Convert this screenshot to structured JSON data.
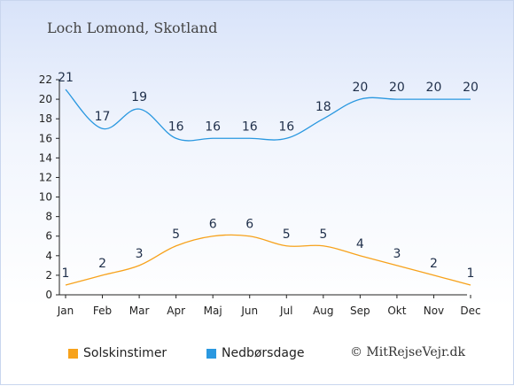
{
  "title": "Loch Lomond, Skotland",
  "credit": "© MitRejseVejr.dk",
  "legend": [
    {
      "label": "Solskinstimer",
      "color": "#f7a21b"
    },
    {
      "label": "Nedbørsdage",
      "color": "#2a98e0"
    }
  ],
  "chart_data": {
    "type": "line",
    "categories": [
      "Jan",
      "Feb",
      "Mar",
      "Apr",
      "Maj",
      "Jun",
      "Jul",
      "Aug",
      "Sep",
      "Okt",
      "Nov",
      "Dec"
    ],
    "series": [
      {
        "name": "Solskinstimer",
        "color": "#f7a21b",
        "values": [
          1,
          2,
          3,
          5,
          6,
          6,
          5,
          5,
          4,
          3,
          2,
          1
        ]
      },
      {
        "name": "Nedbørsdage",
        "color": "#2a98e0",
        "values": [
          21,
          17,
          19,
          16,
          16,
          16,
          16,
          18,
          20,
          20,
          20,
          20
        ]
      }
    ],
    "yticks": [
      0,
      2,
      4,
      6,
      8,
      10,
      12,
      14,
      16,
      18,
      20,
      22
    ],
    "ylim": [
      0,
      22
    ],
    "grid": false,
    "legend_position": "bottom"
  }
}
